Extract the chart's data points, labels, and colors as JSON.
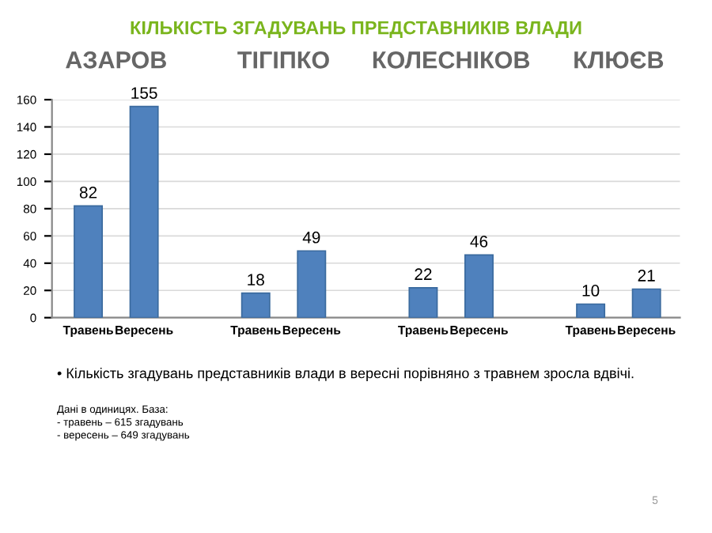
{
  "chart_data": {
    "type": "bar",
    "title": "КІЛЬКІСТЬ ЗГАДУВАНЬ ПРЕДСТАВНИКІВ ВЛАДИ",
    "categories": [
      "Травень",
      "Вересень",
      null,
      "Травень",
      "Вересень",
      null,
      "Травень",
      "Вересень",
      null,
      "Травень",
      "Вересень"
    ],
    "values": [
      82,
      155,
      null,
      18,
      49,
      null,
      22,
      46,
      null,
      10,
      21
    ],
    "color": "#4f81bd",
    "ylim": [
      0,
      160
    ],
    "yticks": [
      0,
      20,
      40,
      60,
      80,
      100,
      120,
      140,
      160
    ],
    "grid": "y",
    "data_labels": true,
    "annotations": [
      "АЗАРОВ",
      "ТІГІПКО",
      "КОЛЕСНІКОВ",
      "КЛЮЄВ",
      "• Кількість згадувань представників влади в вересні порівняно з травнем зросла вдвічі.",
      "Дані в одиницях. База:\n- травень – 615 згадувань\n- вересень – 649 згадувань",
      "5"
    ]
  }
}
